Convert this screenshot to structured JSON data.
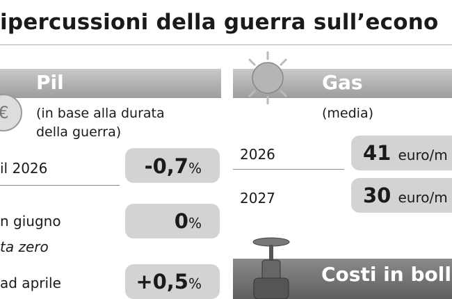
{
  "title": "ipercussioni della guerra sull’econo",
  "pil": {
    "title": "Pil",
    "subtitle": "(in base alla durata della guerra)",
    "rows": [
      {
        "label": "il 2026",
        "value": "-0,7",
        "unit": "%"
      },
      {
        "label": "n giugno",
        "value": "0",
        "unit": "%",
        "note": "ta zero"
      },
      {
        "label": "ad aprile",
        "value": "+0,5",
        "unit": "%"
      }
    ]
  },
  "gas": {
    "title": "Gas",
    "subtitle": "(media)",
    "rows": [
      {
        "label": "2026",
        "value": "41",
        "unit": "euro/m"
      },
      {
        "label": "2027",
        "value": "30",
        "unit": "euro/m"
      }
    ]
  },
  "costs": {
    "title": "Costi in boll"
  }
}
